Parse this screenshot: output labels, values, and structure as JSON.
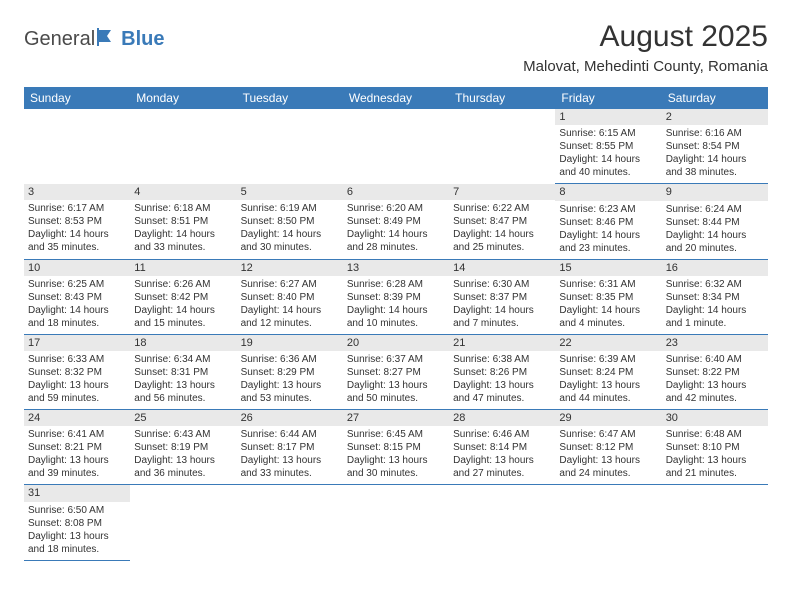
{
  "logo": {
    "text1": "General",
    "text2": "Blue"
  },
  "title": "August 2025",
  "location": "Malovat, Mehedinti County, Romania",
  "colors": {
    "header_bg": "#3a7ab8",
    "header_text": "#ffffff",
    "daynum_bg": "#e9e9e9",
    "row_border": "#3a7ab8",
    "page_bg": "#ffffff",
    "text": "#333333"
  },
  "typography": {
    "title_fontsize": 30,
    "location_fontsize": 15,
    "header_fontsize": 12,
    "cell_fontsize": 10
  },
  "weekdays": [
    "Sunday",
    "Monday",
    "Tuesday",
    "Wednesday",
    "Thursday",
    "Friday",
    "Saturday"
  ],
  "weeks": [
    [
      null,
      null,
      null,
      null,
      null,
      {
        "day": "1",
        "sunrise": "Sunrise: 6:15 AM",
        "sunset": "Sunset: 8:55 PM",
        "dl1": "Daylight: 14 hours",
        "dl2": "and 40 minutes."
      },
      {
        "day": "2",
        "sunrise": "Sunrise: 6:16 AM",
        "sunset": "Sunset: 8:54 PM",
        "dl1": "Daylight: 14 hours",
        "dl2": "and 38 minutes."
      }
    ],
    [
      {
        "day": "3",
        "sunrise": "Sunrise: 6:17 AM",
        "sunset": "Sunset: 8:53 PM",
        "dl1": "Daylight: 14 hours",
        "dl2": "and 35 minutes."
      },
      {
        "day": "4",
        "sunrise": "Sunrise: 6:18 AM",
        "sunset": "Sunset: 8:51 PM",
        "dl1": "Daylight: 14 hours",
        "dl2": "and 33 minutes."
      },
      {
        "day": "5",
        "sunrise": "Sunrise: 6:19 AM",
        "sunset": "Sunset: 8:50 PM",
        "dl1": "Daylight: 14 hours",
        "dl2": "and 30 minutes."
      },
      {
        "day": "6",
        "sunrise": "Sunrise: 6:20 AM",
        "sunset": "Sunset: 8:49 PM",
        "dl1": "Daylight: 14 hours",
        "dl2": "and 28 minutes."
      },
      {
        "day": "7",
        "sunrise": "Sunrise: 6:22 AM",
        "sunset": "Sunset: 8:47 PM",
        "dl1": "Daylight: 14 hours",
        "dl2": "and 25 minutes."
      },
      {
        "day": "8",
        "sunrise": "Sunrise: 6:23 AM",
        "sunset": "Sunset: 8:46 PM",
        "dl1": "Daylight: 14 hours",
        "dl2": "and 23 minutes."
      },
      {
        "day": "9",
        "sunrise": "Sunrise: 6:24 AM",
        "sunset": "Sunset: 8:44 PM",
        "dl1": "Daylight: 14 hours",
        "dl2": "and 20 minutes."
      }
    ],
    [
      {
        "day": "10",
        "sunrise": "Sunrise: 6:25 AM",
        "sunset": "Sunset: 8:43 PM",
        "dl1": "Daylight: 14 hours",
        "dl2": "and 18 minutes."
      },
      {
        "day": "11",
        "sunrise": "Sunrise: 6:26 AM",
        "sunset": "Sunset: 8:42 PM",
        "dl1": "Daylight: 14 hours",
        "dl2": "and 15 minutes."
      },
      {
        "day": "12",
        "sunrise": "Sunrise: 6:27 AM",
        "sunset": "Sunset: 8:40 PM",
        "dl1": "Daylight: 14 hours",
        "dl2": "and 12 minutes."
      },
      {
        "day": "13",
        "sunrise": "Sunrise: 6:28 AM",
        "sunset": "Sunset: 8:39 PM",
        "dl1": "Daylight: 14 hours",
        "dl2": "and 10 minutes."
      },
      {
        "day": "14",
        "sunrise": "Sunrise: 6:30 AM",
        "sunset": "Sunset: 8:37 PM",
        "dl1": "Daylight: 14 hours",
        "dl2": "and 7 minutes."
      },
      {
        "day": "15",
        "sunrise": "Sunrise: 6:31 AM",
        "sunset": "Sunset: 8:35 PM",
        "dl1": "Daylight: 14 hours",
        "dl2": "and 4 minutes."
      },
      {
        "day": "16",
        "sunrise": "Sunrise: 6:32 AM",
        "sunset": "Sunset: 8:34 PM",
        "dl1": "Daylight: 14 hours",
        "dl2": "and 1 minute."
      }
    ],
    [
      {
        "day": "17",
        "sunrise": "Sunrise: 6:33 AM",
        "sunset": "Sunset: 8:32 PM",
        "dl1": "Daylight: 13 hours",
        "dl2": "and 59 minutes."
      },
      {
        "day": "18",
        "sunrise": "Sunrise: 6:34 AM",
        "sunset": "Sunset: 8:31 PM",
        "dl1": "Daylight: 13 hours",
        "dl2": "and 56 minutes."
      },
      {
        "day": "19",
        "sunrise": "Sunrise: 6:36 AM",
        "sunset": "Sunset: 8:29 PM",
        "dl1": "Daylight: 13 hours",
        "dl2": "and 53 minutes."
      },
      {
        "day": "20",
        "sunrise": "Sunrise: 6:37 AM",
        "sunset": "Sunset: 8:27 PM",
        "dl1": "Daylight: 13 hours",
        "dl2": "and 50 minutes."
      },
      {
        "day": "21",
        "sunrise": "Sunrise: 6:38 AM",
        "sunset": "Sunset: 8:26 PM",
        "dl1": "Daylight: 13 hours",
        "dl2": "and 47 minutes."
      },
      {
        "day": "22",
        "sunrise": "Sunrise: 6:39 AM",
        "sunset": "Sunset: 8:24 PM",
        "dl1": "Daylight: 13 hours",
        "dl2": "and 44 minutes."
      },
      {
        "day": "23",
        "sunrise": "Sunrise: 6:40 AM",
        "sunset": "Sunset: 8:22 PM",
        "dl1": "Daylight: 13 hours",
        "dl2": "and 42 minutes."
      }
    ],
    [
      {
        "day": "24",
        "sunrise": "Sunrise: 6:41 AM",
        "sunset": "Sunset: 8:21 PM",
        "dl1": "Daylight: 13 hours",
        "dl2": "and 39 minutes."
      },
      {
        "day": "25",
        "sunrise": "Sunrise: 6:43 AM",
        "sunset": "Sunset: 8:19 PM",
        "dl1": "Daylight: 13 hours",
        "dl2": "and 36 minutes."
      },
      {
        "day": "26",
        "sunrise": "Sunrise: 6:44 AM",
        "sunset": "Sunset: 8:17 PM",
        "dl1": "Daylight: 13 hours",
        "dl2": "and 33 minutes."
      },
      {
        "day": "27",
        "sunrise": "Sunrise: 6:45 AM",
        "sunset": "Sunset: 8:15 PM",
        "dl1": "Daylight: 13 hours",
        "dl2": "and 30 minutes."
      },
      {
        "day": "28",
        "sunrise": "Sunrise: 6:46 AM",
        "sunset": "Sunset: 8:14 PM",
        "dl1": "Daylight: 13 hours",
        "dl2": "and 27 minutes."
      },
      {
        "day": "29",
        "sunrise": "Sunrise: 6:47 AM",
        "sunset": "Sunset: 8:12 PM",
        "dl1": "Daylight: 13 hours",
        "dl2": "and 24 minutes."
      },
      {
        "day": "30",
        "sunrise": "Sunrise: 6:48 AM",
        "sunset": "Sunset: 8:10 PM",
        "dl1": "Daylight: 13 hours",
        "dl2": "and 21 minutes."
      }
    ],
    [
      {
        "day": "31",
        "sunrise": "Sunrise: 6:50 AM",
        "sunset": "Sunset: 8:08 PM",
        "dl1": "Daylight: 13 hours",
        "dl2": "and 18 minutes."
      },
      null,
      null,
      null,
      null,
      null,
      null
    ]
  ]
}
